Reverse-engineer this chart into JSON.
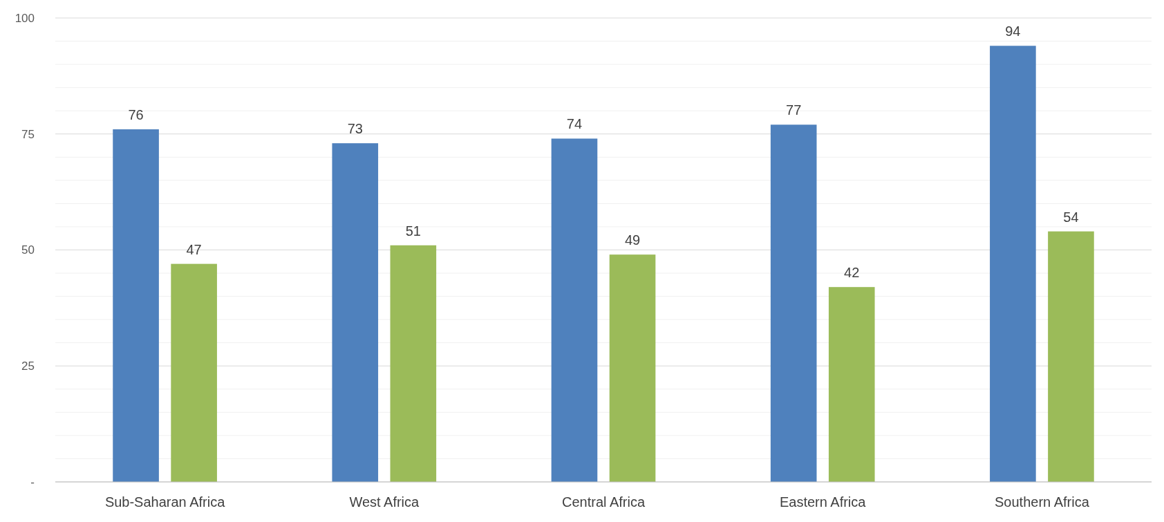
{
  "chart_data": {
    "type": "bar",
    "categories": [
      "Sub-Saharan Africa",
      "West Africa",
      "Central Africa",
      "Eastern Africa",
      "Southern Africa"
    ],
    "series": [
      {
        "color": "#4f81bd",
        "values": [
          76,
          73,
          74,
          77,
          94
        ]
      },
      {
        "color": "#9bbb59",
        "values": [
          47,
          51,
          49,
          42,
          54
        ]
      }
    ],
    "ylim": [
      0,
      100
    ],
    "yticks": [
      {
        "value": 0,
        "label": "-"
      },
      {
        "value": 5,
        "label": null
      },
      {
        "value": 10,
        "label": null
      },
      {
        "value": 15,
        "label": null
      },
      {
        "value": 20,
        "label": null
      },
      25,
      {
        "value": 30,
        "label": null
      },
      {
        "value": 35,
        "label": null
      },
      {
        "value": 40,
        "label": null
      },
      {
        "value": 45,
        "label": null
      },
      50,
      {
        "value": 55,
        "label": null
      },
      {
        "value": 60,
        "label": null
      },
      {
        "value": 65,
        "label": null
      },
      {
        "value": 70,
        "label": null
      },
      75,
      {
        "value": 80,
        "label": null
      },
      {
        "value": 85,
        "label": null
      },
      {
        "value": 90,
        "label": null
      },
      {
        "value": 95,
        "label": null
      },
      100
    ],
    "grid": "y",
    "data_labels": true
  }
}
